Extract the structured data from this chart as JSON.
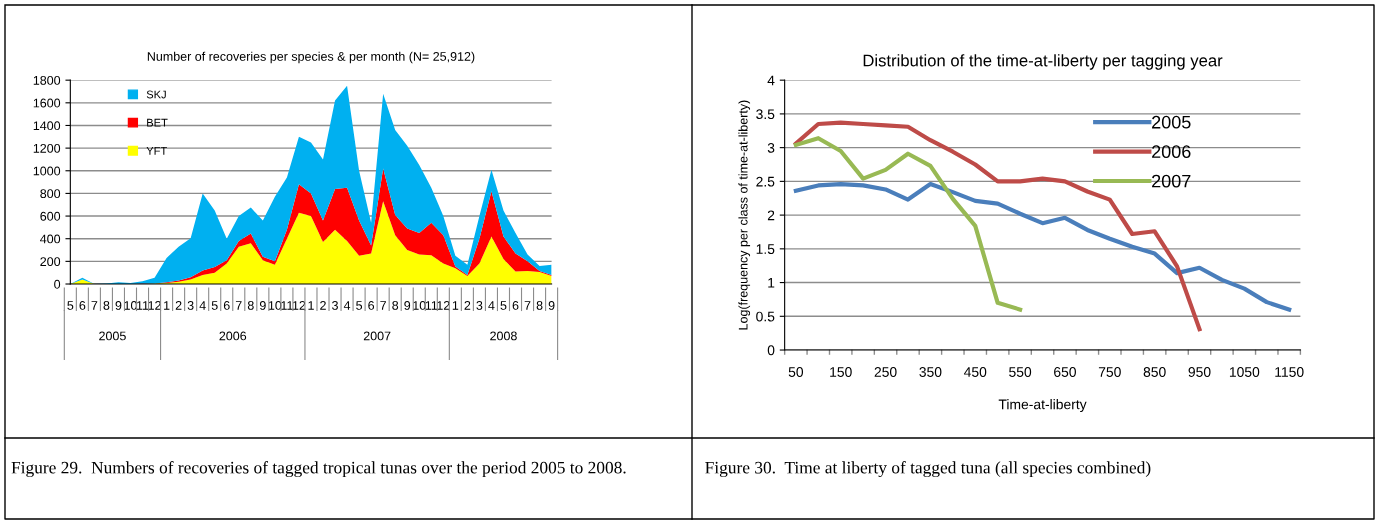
{
  "chart_data": [
    {
      "type": "area",
      "stacked": true,
      "title": "Number of recoveries per species & per month (N= 25,912)",
      "categories": [
        "5",
        "6",
        "7",
        "8",
        "9",
        "10",
        "11",
        "12",
        "1",
        "2",
        "3",
        "4",
        "5",
        "6",
        "7",
        "8",
        "9",
        "10",
        "11",
        "12",
        "1",
        "2",
        "3",
        "4",
        "5",
        "6",
        "7",
        "8",
        "9",
        "10",
        "11",
        "12",
        "1",
        "2",
        "3",
        "4",
        "5",
        "6",
        "7",
        "8",
        "9"
      ],
      "series": [
        {
          "name": "YFT",
          "color": "#ffff00",
          "values": [
            0,
            40,
            0,
            0,
            0,
            0,
            0,
            5,
            10,
            20,
            40,
            80,
            100,
            180,
            330,
            360,
            210,
            170,
            400,
            630,
            600,
            370,
            480,
            380,
            250,
            270,
            730,
            430,
            300,
            260,
            255,
            180,
            140,
            70,
            180,
            420,
            220,
            110,
            115,
            105,
            70
          ]
        },
        {
          "name": "BET",
          "color": "#ff0000",
          "values": [
            0,
            0,
            0,
            0,
            0,
            0,
            5,
            0,
            5,
            10,
            20,
            40,
            50,
            30,
            50,
            85,
            30,
            30,
            80,
            250,
            200,
            190,
            360,
            470,
            310,
            70,
            290,
            180,
            190,
            190,
            285,
            250,
            15,
            10,
            220,
            400,
            200,
            160,
            85,
            10,
            10
          ]
        },
        {
          "name": "SKJ",
          "color": "#00b0f0",
          "values": [
            0,
            15,
            0,
            5,
            15,
            10,
            20,
            50,
            215,
            300,
            345,
            680,
            500,
            190,
            220,
            230,
            320,
            570,
            460,
            420,
            450,
            540,
            780,
            900,
            440,
            200,
            660,
            750,
            730,
            600,
            310,
            170,
            95,
            90,
            200,
            190,
            230,
            180,
            60,
            45,
            90
          ]
        }
      ],
      "ylim": [
        0,
        1800
      ],
      "yticks": [
        0,
        200,
        400,
        600,
        800,
        1000,
        1200,
        1400,
        1600,
        1800
      ],
      "grid": "y",
      "legend": "top left",
      "annotations": [
        "2005",
        "2006",
        "2007",
        "2008",
        "Figure 29.  Numbers of recoveries of tagged tropical tunas over the period 2005 to 2008."
      ]
    },
    {
      "type": "line",
      "title": "Distribution of the time-at-liberty per tagging year",
      "xlabel": "Time-at-liberty",
      "ylabel": "Log(frequency per class of time-at-liberty)",
      "categories": [
        "50",
        null,
        "150",
        null,
        "250",
        null,
        "350",
        null,
        "450",
        null,
        "550",
        null,
        "650",
        null,
        "750",
        null,
        "850",
        null,
        "950",
        null,
        "1050",
        null,
        "1150"
      ],
      "series": [
        {
          "name": "2005",
          "color": "#4a7ebb",
          "values": [
            2.36,
            2.44,
            2.46,
            2.44,
            2.38,
            2.23,
            2.46,
            2.34,
            2.21,
            2.17,
            2.02,
            1.88,
            1.96,
            1.78,
            1.65,
            1.53,
            1.43,
            1.14,
            1.22,
            1.04,
            0.91,
            0.71,
            0.6
          ]
        },
        {
          "name": "2006",
          "color": "#be4b48",
          "values": [
            3.06,
            3.35,
            3.37,
            3.35,
            3.33,
            3.31,
            3.11,
            2.94,
            2.75,
            2.5,
            2.5,
            2.54,
            2.5,
            2.35,
            2.23,
            1.72,
            1.76,
            1.24,
            0.31,
            null,
            null,
            null,
            null
          ]
        },
        {
          "name": "2007",
          "color": "#98b954",
          "values": [
            3.04,
            3.14,
            2.95,
            2.54,
            2.67,
            2.91,
            2.73,
            2.24,
            1.84,
            0.7,
            0.6,
            null,
            null,
            null,
            null,
            null,
            null,
            null,
            null,
            null,
            null,
            null,
            null
          ]
        }
      ],
      "ylim": [
        0,
        4
      ],
      "yticks": [
        0,
        0.5,
        1,
        1.5,
        2,
        2.5,
        3,
        3.5,
        4
      ],
      "grid": "y",
      "legend": "top right",
      "marker": "none",
      "line_style": "solid",
      "annotations": [
        "Figure 30.  Time at liberty of tagged tuna (all species combined)"
      ]
    }
  ]
}
